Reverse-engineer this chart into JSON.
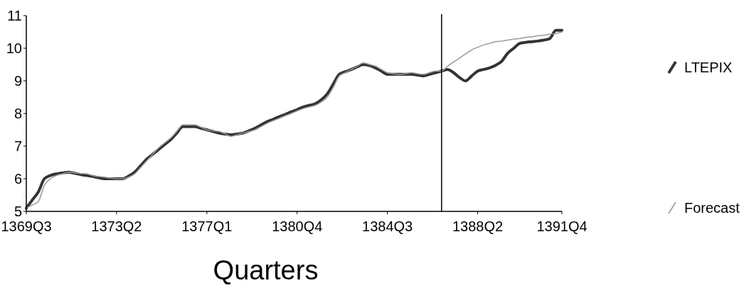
{
  "chart_data": {
    "type": "line",
    "xlabel": "Quarters",
    "categories": [
      "1369Q3",
      null,
      null,
      null,
      null,
      null,
      null,
      null,
      null,
      null,
      null,
      null,
      null,
      null,
      null,
      "1373Q2",
      null,
      null,
      null,
      null,
      null,
      null,
      null,
      null,
      null,
      null,
      null,
      null,
      null,
      null,
      "1377Q1",
      null,
      null,
      null,
      null,
      null,
      null,
      null,
      null,
      null,
      null,
      null,
      null,
      null,
      null,
      "1380Q4",
      null,
      null,
      null,
      null,
      null,
      null,
      null,
      null,
      null,
      null,
      null,
      null,
      null,
      null,
      "1384Q3",
      null,
      null,
      null,
      null,
      null,
      null,
      null,
      null,
      null,
      null,
      null,
      null,
      null,
      null,
      "1388Q2",
      null,
      null,
      null,
      null,
      null,
      null,
      null,
      null,
      null,
      null,
      null,
      null,
      null,
      "1391Q4"
    ],
    "ylim": [
      5,
      11
    ],
    "yticks": [
      5,
      6,
      7,
      8,
      9,
      10,
      11
    ],
    "legend": "right",
    "series": [
      {
        "name": "LTEPIX",
        "color": "#333333",
        "values": [
          5.1,
          5.35,
          5.6,
          6.0,
          6.1,
          6.15,
          6.18,
          6.2,
          6.17,
          6.13,
          6.1,
          6.07,
          6.03,
          6.0,
          6.0,
          6.0,
          6.0,
          6.08,
          6.2,
          6.4,
          6.6,
          6.75,
          6.9,
          7.05,
          7.2,
          7.4,
          7.6,
          7.6,
          7.6,
          7.55,
          7.5,
          7.45,
          7.4,
          7.37,
          7.35,
          7.37,
          7.4,
          7.47,
          7.55,
          7.65,
          7.75,
          7.82,
          7.9,
          7.97,
          8.05,
          8.12,
          8.2,
          8.25,
          8.3,
          8.42,
          8.6,
          8.9,
          9.2,
          9.28,
          9.35,
          9.43,
          9.5,
          9.47,
          9.4,
          9.3,
          9.2,
          9.2,
          9.2,
          9.2,
          9.2,
          9.18,
          9.15,
          9.2,
          9.25,
          9.3,
          9.35,
          9.25,
          9.1,
          9.0,
          9.15,
          9.3,
          9.35,
          9.4,
          9.48,
          9.6,
          9.85,
          10.0,
          10.15,
          10.18,
          10.2,
          10.22,
          10.25,
          10.3,
          10.55,
          10.55
        ]
      },
      {
        "name": "Forecast",
        "color": "#999999",
        "values": [
          5.1,
          5.2,
          5.3,
          5.8,
          6.0,
          6.1,
          6.15,
          6.2,
          6.18,
          6.16,
          6.15,
          6.1,
          6.07,
          6.05,
          6.02,
          6.0,
          6.0,
          6.05,
          6.15,
          6.35,
          6.55,
          6.75,
          6.95,
          7.1,
          7.25,
          7.45,
          7.65,
          7.65,
          7.65,
          7.58,
          7.5,
          7.47,
          7.45,
          7.38,
          7.3,
          7.35,
          7.4,
          7.45,
          7.5,
          7.6,
          7.7,
          7.78,
          7.85,
          7.93,
          8.0,
          8.08,
          8.15,
          8.2,
          8.25,
          8.35,
          8.5,
          8.8,
          9.15,
          9.25,
          9.35,
          9.45,
          9.55,
          9.5,
          9.45,
          9.35,
          9.25,
          9.22,
          9.2,
          9.22,
          9.25,
          9.22,
          9.2,
          9.25,
          9.3,
          9.3,
          9.45,
          9.58,
          9.7,
          9.83,
          9.95,
          10.03,
          10.1,
          10.15,
          10.2,
          10.22,
          10.25,
          10.28,
          10.3,
          10.33,
          10.35,
          10.38,
          10.4,
          10.43,
          10.45,
          10.5
        ]
      }
    ]
  }
}
